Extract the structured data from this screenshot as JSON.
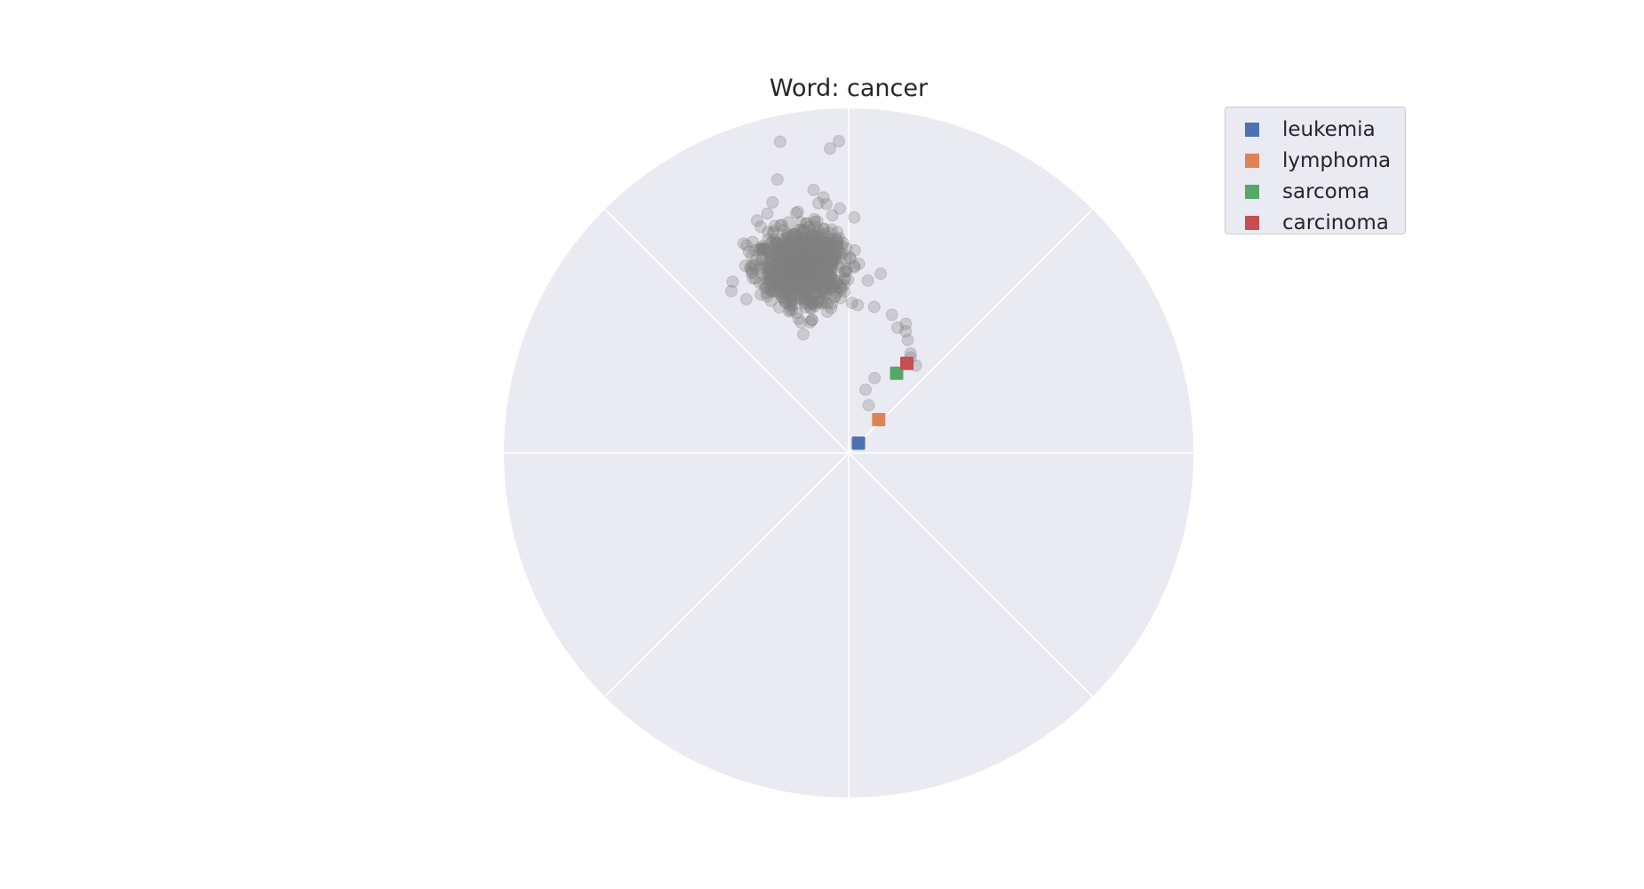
{
  "chart_data": {
    "type": "scatter",
    "projection": "polar",
    "title": "Word: cancer",
    "grid": true,
    "legend_placement": "upper-right outside",
    "background_color": "#eaeaf2",
    "grid_color": "#ffffff",
    "rlim": [
      0,
      1
    ],
    "angular_grid_deg": [
      0,
      45,
      90,
      135,
      180,
      225,
      270,
      315
    ],
    "cloud": {
      "color": "#808080",
      "alpha": 0.3,
      "count": 1000,
      "center_r": 0.56,
      "center_theta_deg": 104,
      "spread_r": 0.055,
      "spread_theta_deg": 6,
      "outliers": [
        {
          "r": 0.925,
          "theta": 102.4
        },
        {
          "r": 0.905,
          "theta": 91.8
        },
        {
          "r": 0.885,
          "theta": 93.5
        },
        {
          "r": 0.82,
          "theta": 104.6
        },
        {
          "r": 0.77,
          "theta": 97.6
        },
        {
          "r": 0.76,
          "theta": 106.9
        },
        {
          "r": 0.73,
          "theta": 96.9
        },
        {
          "r": 0.725,
          "theta": 95.1
        },
        {
          "r": 0.725,
          "theta": 111.5
        },
        {
          "r": 0.745,
          "theta": 95.6
        },
        {
          "r": 0.715,
          "theta": 101.9
        },
        {
          "r": 0.68,
          "theta": 116.6
        },
        {
          "r": 0.6,
          "theta": 124.1
        },
        {
          "r": 0.58,
          "theta": 125.9
        },
        {
          "r": 0.62,
          "theta": 118.9
        },
        {
          "r": 0.39,
          "theta": 64.9
        },
        {
          "r": 0.34,
          "theta": 58.1
        },
        {
          "r": 0.33,
          "theta": 57.0
        },
        {
          "r": 0.32,
          "theta": 52.5
        },
        {
          "r": 0.39,
          "theta": 68.7
        },
        {
          "r": 0.42,
          "theta": 72.6
        },
        {
          "r": 0.43,
          "theta": 80.1
        },
        {
          "r": 0.43,
          "theta": 86.5
        },
        {
          "r": 0.23,
          "theta": 70.9
        },
        {
          "r": 0.19,
          "theta": 75.1
        },
        {
          "r": 0.15,
          "theta": 67.3
        },
        {
          "r": 0.41,
          "theta": 66.1
        },
        {
          "r": 0.37,
          "theta": 62.4
        }
      ]
    },
    "series": [
      {
        "name": "leukemia",
        "color": "#4c72b0",
        "marker": "square",
        "r": 0.04,
        "theta": 45
      },
      {
        "name": "lymphoma",
        "color": "#dd8452",
        "marker": "square",
        "r": 0.13,
        "theta": 48
      },
      {
        "name": "sarcoma",
        "color": "#55a868",
        "marker": "square",
        "r": 0.27,
        "theta": 59
      },
      {
        "name": "carcinoma",
        "color": "#c44e52",
        "marker": "square",
        "r": 0.31,
        "theta": 57
      }
    ]
  }
}
